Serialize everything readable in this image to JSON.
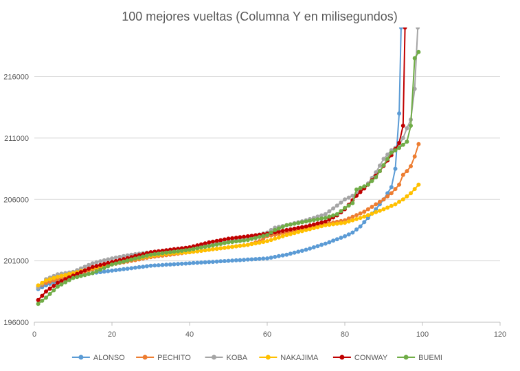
{
  "chart_data": {
    "type": "line",
    "title": "100 mejores vueltas (Columna Y en milisegundos)",
    "xlabel": "",
    "ylabel": "",
    "xlim": [
      0,
      120
    ],
    "ylim": [
      196000,
      220000
    ],
    "x_ticks": [
      "0",
      "20",
      "40",
      "60",
      "80",
      "100",
      "120"
    ],
    "y_ticks": [
      "196000",
      "201000",
      "206000",
      "211000",
      "216000"
    ],
    "grid": "horizontal",
    "legend_position": "bottom",
    "series": [
      {
        "name": "ALONSO",
        "color": "#5B9BD5",
        "anchors": [
          [
            1,
            198700
          ],
          [
            3,
            199000
          ],
          [
            6,
            199400
          ],
          [
            10,
            199700
          ],
          [
            15,
            200000
          ],
          [
            20,
            200200
          ],
          [
            25,
            200400
          ],
          [
            30,
            200600
          ],
          [
            35,
            200700
          ],
          [
            40,
            200800
          ],
          [
            45,
            200900
          ],
          [
            50,
            201000
          ],
          [
            55,
            201100
          ],
          [
            60,
            201200
          ],
          [
            65,
            201500
          ],
          [
            70,
            201900
          ],
          [
            75,
            202400
          ],
          [
            80,
            203000
          ],
          [
            82,
            203300
          ],
          [
            84,
            203800
          ],
          [
            86,
            204500
          ],
          [
            88,
            205200
          ],
          [
            90,
            206000
          ],
          [
            92,
            207000
          ],
          [
            93,
            208500
          ],
          [
            94,
            213000
          ],
          [
            94.5,
            220000
          ]
        ]
      },
      {
        "name": "PECHITO",
        "color": "#ED7D31",
        "anchors": [
          [
            1,
            198900
          ],
          [
            3,
            199200
          ],
          [
            6,
            199500
          ],
          [
            10,
            199800
          ],
          [
            15,
            200300
          ],
          [
            20,
            200700
          ],
          [
            25,
            201000
          ],
          [
            30,
            201300
          ],
          [
            35,
            201500
          ],
          [
            40,
            201700
          ],
          [
            45,
            201900
          ],
          [
            50,
            202100
          ],
          [
            55,
            202300
          ],
          [
            58,
            202600
          ],
          [
            60,
            203000
          ],
          [
            65,
            203300
          ],
          [
            70,
            203700
          ],
          [
            75,
            204000
          ],
          [
            80,
            204300
          ],
          [
            85,
            205000
          ],
          [
            90,
            206000
          ],
          [
            92,
            206500
          ],
          [
            94,
            207200
          ],
          [
            95,
            208000
          ],
          [
            96,
            208300
          ],
          [
            97,
            208700
          ],
          [
            98,
            209500
          ],
          [
            99,
            210500
          ]
        ]
      },
      {
        "name": "KOBA",
        "color": "#A5A5A5",
        "anchors": [
          [
            1,
            198800
          ],
          [
            3,
            199500
          ],
          [
            6,
            199900
          ],
          [
            10,
            200100
          ],
          [
            15,
            200800
          ],
          [
            20,
            201200
          ],
          [
            25,
            201500
          ],
          [
            30,
            201700
          ],
          [
            35,
            201900
          ],
          [
            40,
            202100
          ],
          [
            45,
            202300
          ],
          [
            50,
            202600
          ],
          [
            55,
            202900
          ],
          [
            60,
            203300
          ],
          [
            62,
            203700
          ],
          [
            65,
            203900
          ],
          [
            70,
            204300
          ],
          [
            75,
            204800
          ],
          [
            78,
            205500
          ],
          [
            80,
            206000
          ],
          [
            82,
            206300
          ],
          [
            84,
            206700
          ],
          [
            86,
            207300
          ],
          [
            88,
            208200
          ],
          [
            90,
            209300
          ],
          [
            92,
            210000
          ],
          [
            94,
            210400
          ],
          [
            95,
            211000
          ],
          [
            96,
            211800
          ],
          [
            97,
            212500
          ],
          [
            98,
            215000
          ],
          [
            98.8,
            220000
          ]
        ]
      },
      {
        "name": "NAKAJIMA",
        "color": "#FFC000",
        "anchors": [
          [
            1,
            199000
          ],
          [
            3,
            199400
          ],
          [
            6,
            199700
          ],
          [
            10,
            200000
          ],
          [
            15,
            200400
          ],
          [
            20,
            200800
          ],
          [
            25,
            201100
          ],
          [
            30,
            201400
          ],
          [
            35,
            201600
          ],
          [
            40,
            201700
          ],
          [
            45,
            201900
          ],
          [
            50,
            202100
          ],
          [
            55,
            202300
          ],
          [
            60,
            202600
          ],
          [
            65,
            203100
          ],
          [
            70,
            203500
          ],
          [
            75,
            203900
          ],
          [
            80,
            204100
          ],
          [
            85,
            204600
          ],
          [
            90,
            205200
          ],
          [
            93,
            205600
          ],
          [
            95,
            206000
          ],
          [
            97,
            206500
          ],
          [
            99,
            207200
          ]
        ]
      },
      {
        "name": "CONWAY",
        "color": "#C00000",
        "anchors": [
          [
            1,
            197800
          ],
          [
            3,
            198500
          ],
          [
            6,
            199200
          ],
          [
            10,
            199800
          ],
          [
            15,
            200500
          ],
          [
            20,
            200900
          ],
          [
            25,
            201300
          ],
          [
            30,
            201700
          ],
          [
            35,
            201900
          ],
          [
            40,
            202100
          ],
          [
            45,
            202500
          ],
          [
            50,
            202800
          ],
          [
            55,
            203000
          ],
          [
            60,
            203200
          ],
          [
            65,
            203500
          ],
          [
            70,
            203800
          ],
          [
            75,
            204200
          ],
          [
            78,
            204700
          ],
          [
            80,
            205200
          ],
          [
            83,
            206300
          ],
          [
            86,
            207200
          ],
          [
            89,
            208300
          ],
          [
            92,
            209600
          ],
          [
            94,
            210600
          ],
          [
            95,
            212000
          ],
          [
            95.5,
            220000
          ]
        ]
      },
      {
        "name": "BUEMI",
        "color": "#70AD47",
        "anchors": [
          [
            1,
            197500
          ],
          [
            3,
            198000
          ],
          [
            6,
            198900
          ],
          [
            10,
            199600
          ],
          [
            15,
            200000
          ],
          [
            20,
            200700
          ],
          [
            25,
            201100
          ],
          [
            30,
            201500
          ],
          [
            35,
            201700
          ],
          [
            40,
            201900
          ],
          [
            45,
            202200
          ],
          [
            50,
            202500
          ],
          [
            55,
            202700
          ],
          [
            60,
            203100
          ],
          [
            62,
            203500
          ],
          [
            65,
            203900
          ],
          [
            70,
            204200
          ],
          [
            75,
            204500
          ],
          [
            78,
            204800
          ],
          [
            80,
            205300
          ],
          [
            82,
            205700
          ],
          [
            83,
            206800
          ],
          [
            86,
            207200
          ],
          [
            88,
            207800
          ],
          [
            90,
            208800
          ],
          [
            92,
            209800
          ],
          [
            94,
            210200
          ],
          [
            96,
            210700
          ],
          [
            97,
            212000
          ],
          [
            98,
            217500
          ],
          [
            99,
            218000
          ]
        ]
      }
    ]
  }
}
